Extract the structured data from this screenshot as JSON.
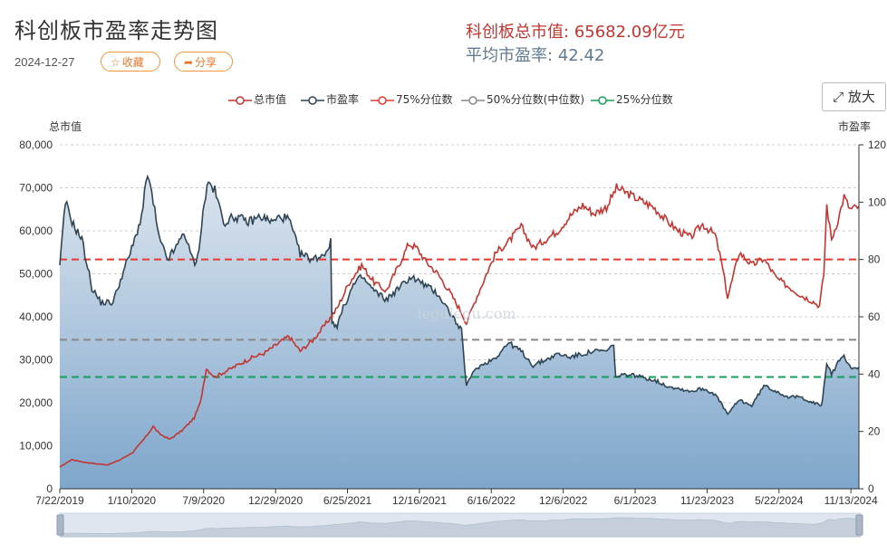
{
  "header": {
    "title": "科创板市盈率走势图",
    "date": "2024-12-27",
    "favorite_label": "收藏",
    "share_label": "分享",
    "zoom_label": "放大"
  },
  "stats": {
    "market_cap_label": "科创板总市值:",
    "market_cap_value": "65682.09亿元",
    "avg_pe_label": "平均市盈率:",
    "avg_pe_value": "42.42"
  },
  "watermark": "legulegu.com",
  "colors": {
    "market_cap": "#c23531",
    "pe": "#2f4554",
    "pe_fill_top": "#dde5ee",
    "pe_fill_bottom": "#7ea6cc",
    "q75": "#e8382f",
    "q50": "#888888",
    "q25": "#13a05a"
  },
  "chart_data": {
    "type": "line",
    "legend": [
      "总市值",
      "市盈率",
      "75%分位数",
      "50%分位数(中位数)",
      "25%分位数"
    ],
    "legend_position": "top",
    "y_left": {
      "name": "总市值",
      "min": 0,
      "max": 80000,
      "ticks": [
        "0",
        "10,000",
        "20,000",
        "30,000",
        "40,000",
        "50,000",
        "60,000",
        "70,000",
        "80,000"
      ]
    },
    "y_right": {
      "name": "市盈率",
      "min": 0,
      "max": 120,
      "ticks": [
        "0",
        "20",
        "40",
        "60",
        "80",
        "100",
        "120"
      ]
    },
    "x_tick_labels": [
      "7/22/2019",
      "1/10/2020",
      "7/9/2020",
      "12/29/2020",
      "6/25/2021",
      "12/16/2021",
      "6/16/2022",
      "12/6/2022",
      "6/1/2023",
      "11/23/2023",
      "5/22/2024",
      "11/13/2024"
    ],
    "x_start": "2019-07-22",
    "x_end": "2024-12-27",
    "grid": true,
    "percentiles": {
      "q75": 80,
      "q50": 52,
      "q25": 39
    },
    "series": [
      {
        "name": "总市值",
        "axis": "left",
        "points": [
          [
            "2019-07-22",
            5000
          ],
          [
            "2019-08-20",
            6800
          ],
          [
            "2019-09-20",
            6200
          ],
          [
            "2019-10-20",
            5800
          ],
          [
            "2019-11-20",
            5600
          ],
          [
            "2019-12-20",
            6800
          ],
          [
            "2020-01-20",
            8500
          ],
          [
            "2020-02-20",
            12000
          ],
          [
            "2020-03-10",
            14500
          ],
          [
            "2020-03-25",
            12800
          ],
          [
            "2020-04-20",
            11500
          ],
          [
            "2020-05-20",
            13500
          ],
          [
            "2020-06-20",
            16500
          ],
          [
            "2020-07-05",
            20000
          ],
          [
            "2020-07-20",
            28000
          ],
          [
            "2020-08-10",
            26000
          ],
          [
            "2020-09-10",
            27500
          ],
          [
            "2020-10-10",
            29000
          ],
          [
            "2020-11-10",
            30500
          ],
          [
            "2020-12-10",
            31500
          ],
          [
            "2021-01-10",
            33500
          ],
          [
            "2021-02-10",
            35500
          ],
          [
            "2021-03-10",
            32000
          ],
          [
            "2021-04-10",
            34500
          ],
          [
            "2021-05-10",
            38000
          ],
          [
            "2021-06-10",
            42000
          ],
          [
            "2021-07-10",
            48000
          ],
          [
            "2021-08-10",
            52000
          ],
          [
            "2021-09-10",
            48000
          ],
          [
            "2021-10-10",
            46000
          ],
          [
            "2021-11-10",
            52000
          ],
          [
            "2021-12-05",
            57000
          ],
          [
            "2021-12-25",
            56000
          ],
          [
            "2022-01-15",
            53000
          ],
          [
            "2022-02-15",
            50000
          ],
          [
            "2022-03-15",
            46000
          ],
          [
            "2022-04-15",
            41000
          ],
          [
            "2022-04-27",
            38500
          ],
          [
            "2022-05-20",
            44000
          ],
          [
            "2022-06-16",
            50000
          ],
          [
            "2022-07-10",
            55000
          ],
          [
            "2022-08-10",
            57500
          ],
          [
            "2022-09-10",
            61000
          ],
          [
            "2022-10-10",
            56000
          ],
          [
            "2022-11-10",
            58000
          ],
          [
            "2022-12-10",
            60000
          ],
          [
            "2023-01-10",
            63500
          ],
          [
            "2023-02-10",
            66000
          ],
          [
            "2023-03-10",
            64000
          ],
          [
            "2023-04-10",
            65500
          ],
          [
            "2023-05-05",
            70000
          ],
          [
            "2023-06-05",
            68500
          ],
          [
            "2023-07-05",
            67000
          ],
          [
            "2023-08-05",
            65500
          ],
          [
            "2023-09-05",
            62500
          ],
          [
            "2023-10-05",
            60000
          ],
          [
            "2023-11-05",
            58500
          ],
          [
            "2023-12-05",
            61500
          ],
          [
            "2024-01-05",
            59000
          ],
          [
            "2024-01-20",
            53000
          ],
          [
            "2024-02-05",
            44500
          ],
          [
            "2024-03-05",
            55000
          ],
          [
            "2024-04-05",
            52000
          ],
          [
            "2024-05-05",
            53500
          ],
          [
            "2024-06-05",
            49000
          ],
          [
            "2024-07-05",
            47000
          ],
          [
            "2024-08-05",
            45000
          ],
          [
            "2024-09-05",
            43500
          ],
          [
            "2024-09-20",
            42500
          ],
          [
            "2024-10-01",
            50000
          ],
          [
            "2024-10-08",
            66000
          ],
          [
            "2024-10-20",
            58000
          ],
          [
            "2024-11-05",
            62500
          ],
          [
            "2024-11-20",
            68000
          ],
          [
            "2024-12-05",
            65000
          ],
          [
            "2024-12-27",
            65682
          ]
        ]
      },
      {
        "name": "市盈率",
        "axis": "right",
        "points": [
          [
            "2019-07-22",
            78
          ],
          [
            "2019-08-05",
            100
          ],
          [
            "2019-08-25",
            92
          ],
          [
            "2019-09-15",
            87
          ],
          [
            "2019-10-10",
            70
          ],
          [
            "2019-11-01",
            65
          ],
          [
            "2019-12-01",
            65
          ],
          [
            "2019-12-20",
            73
          ],
          [
            "2020-01-20",
            85
          ],
          [
            "2020-02-10",
            95
          ],
          [
            "2020-02-25",
            110
          ],
          [
            "2020-03-10",
            100
          ],
          [
            "2020-03-25",
            87
          ],
          [
            "2020-04-15",
            80
          ],
          [
            "2020-05-10",
            85
          ],
          [
            "2020-05-25",
            90
          ],
          [
            "2020-06-10",
            82
          ],
          [
            "2020-06-25",
            78
          ],
          [
            "2020-07-05",
            88
          ],
          [
            "2020-07-15",
            100
          ],
          [
            "2020-07-25",
            107
          ],
          [
            "2020-08-10",
            104
          ],
          [
            "2020-09-01",
            93
          ],
          [
            "2020-10-01",
            95
          ],
          [
            "2020-11-01",
            93
          ],
          [
            "2020-12-01",
            95
          ],
          [
            "2021-01-01",
            93
          ],
          [
            "2021-01-20",
            95
          ],
          [
            "2021-02-10",
            94
          ],
          [
            "2021-03-10",
            82
          ],
          [
            "2021-04-10",
            80
          ],
          [
            "2021-05-10",
            82
          ],
          [
            "2021-05-25",
            86
          ],
          [
            "2021-05-28",
            58
          ],
          [
            "2021-06-10",
            57
          ],
          [
            "2021-06-25",
            63
          ],
          [
            "2021-07-20",
            71
          ],
          [
            "2021-08-10",
            74
          ],
          [
            "2021-09-10",
            69
          ],
          [
            "2021-10-10",
            66
          ],
          [
            "2021-11-10",
            70
          ],
          [
            "2021-12-10",
            74
          ],
          [
            "2022-01-15",
            71
          ],
          [
            "2022-02-15",
            68
          ],
          [
            "2022-03-15",
            62
          ],
          [
            "2022-04-15",
            55
          ],
          [
            "2022-04-27",
            36
          ],
          [
            "2022-05-20",
            42
          ],
          [
            "2022-06-16",
            44
          ],
          [
            "2022-07-10",
            46
          ],
          [
            "2022-08-10",
            51
          ],
          [
            "2022-09-10",
            48
          ],
          [
            "2022-10-10",
            43
          ],
          [
            "2022-11-10",
            45
          ],
          [
            "2022-12-10",
            47
          ],
          [
            "2023-01-10",
            46
          ],
          [
            "2023-02-10",
            47
          ],
          [
            "2023-03-10",
            48
          ],
          [
            "2023-04-10",
            48
          ],
          [
            "2023-04-28",
            50
          ],
          [
            "2023-05-03",
            39
          ],
          [
            "2023-06-05",
            40
          ],
          [
            "2023-07-05",
            39
          ],
          [
            "2023-08-05",
            38
          ],
          [
            "2023-09-05",
            36
          ],
          [
            "2023-10-05",
            35
          ],
          [
            "2023-11-05",
            34
          ],
          [
            "2023-12-05",
            35
          ],
          [
            "2024-01-05",
            33
          ],
          [
            "2024-02-05",
            26
          ],
          [
            "2024-03-05",
            31
          ],
          [
            "2024-04-05",
            29
          ],
          [
            "2024-05-05",
            36
          ],
          [
            "2024-06-05",
            34
          ],
          [
            "2024-07-05",
            32
          ],
          [
            "2024-08-05",
            32
          ],
          [
            "2024-09-05",
            30
          ],
          [
            "2024-09-25",
            29
          ],
          [
            "2024-10-01",
            35
          ],
          [
            "2024-10-08",
            44
          ],
          [
            "2024-10-20",
            40
          ],
          [
            "2024-11-05",
            44
          ],
          [
            "2024-11-20",
            46
          ],
          [
            "2024-12-10",
            42
          ],
          [
            "2024-12-27",
            42.42
          ]
        ]
      }
    ]
  }
}
